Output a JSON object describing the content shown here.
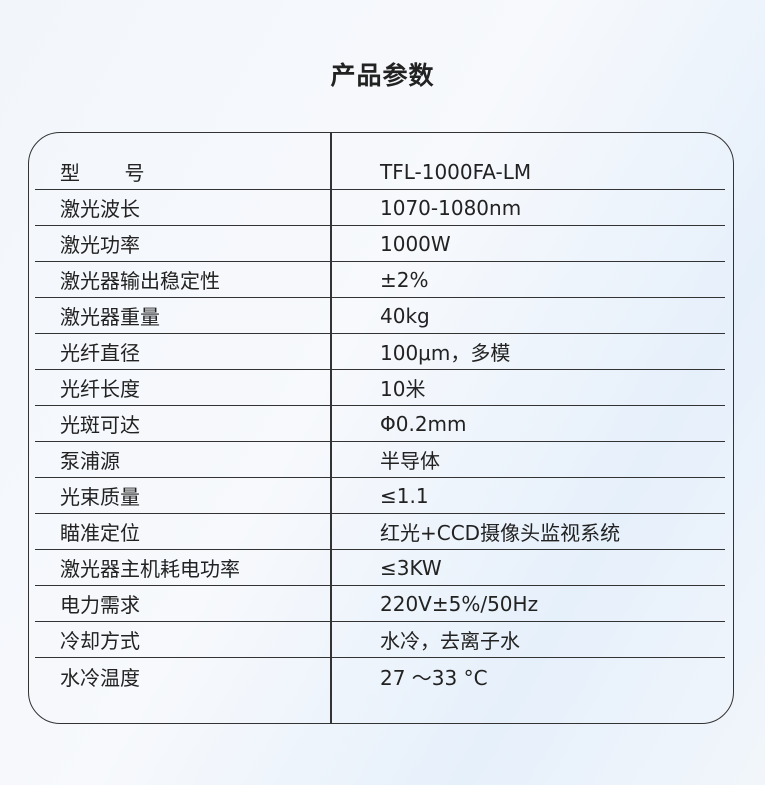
{
  "title": "产品参数",
  "params": [
    {
      "k": "型       号",
      "v": "TFL-1000FA-LM"
    },
    {
      "k": "激光波长",
      "v": "1070-1080nm"
    },
    {
      "k": "激光功率",
      "v": "1000W"
    },
    {
      "k": "激光器输出稳定性",
      "v": "±2%"
    },
    {
      "k": "激光器重量",
      "v": "40kg"
    },
    {
      "k": "光纤直径",
      "v": "100μm，多模"
    },
    {
      "k": "光纤长度",
      "v": "10米"
    },
    {
      "k": "光斑可达",
      "v": "Φ0.2mm"
    },
    {
      "k": "泵浦源",
      "v": "半导体"
    },
    {
      "k": "光束质量",
      "v": "≤1.1"
    },
    {
      "k": "瞄准定位",
      "v": "红光+CCD摄像头监视系统"
    },
    {
      "k": "激光器主机耗电功率",
      "v": "≤3KW"
    },
    {
      "k": "电力需求",
      "v": "220V±5%/50Hz"
    },
    {
      "k": "冷却方式",
      "v": "水冷，去离子水"
    },
    {
      "k": "水冷温度",
      "v": "27 ～33 °C"
    }
  ]
}
